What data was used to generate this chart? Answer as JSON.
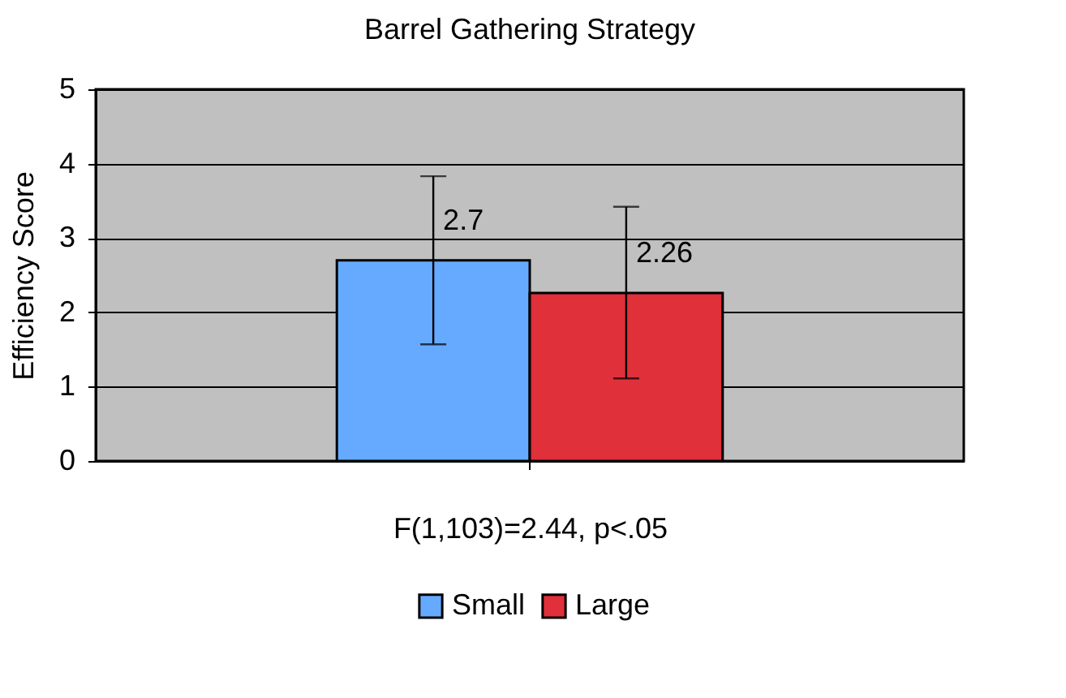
{
  "chart_data": {
    "type": "bar",
    "title": "Barrel Gathering Strategy",
    "xlabel": "F(1,103)=2.44, p<.05",
    "ylabel": "Efficiency Score",
    "categories": [
      null
    ],
    "series": [
      {
        "name": "Small",
        "color": "#66aaff",
        "values": [
          2.7
        ],
        "errors": [
          [
            1.57,
            3.83
          ]
        ]
      },
      {
        "name": "Large",
        "color": "#e0303a",
        "values": [
          2.26
        ],
        "errors": [
          [
            1.11,
            3.42
          ]
        ]
      }
    ],
    "ylim": [
      0,
      5
    ],
    "yticks": [
      0,
      1,
      2,
      3,
      4,
      5
    ],
    "grid": "y",
    "legend": "bottom",
    "data_labels": true
  }
}
